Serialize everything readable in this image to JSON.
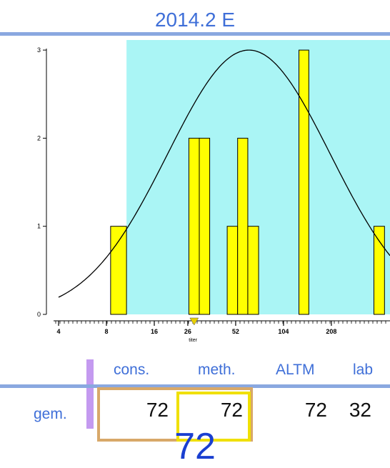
{
  "chart_data": {
    "type": "bar",
    "title": "2014.2 E",
    "xlabel": "titer",
    "ylabel": "",
    "x_scale": "log2",
    "tick_labels": [
      "4",
      "8",
      "16",
      "26",
      "52",
      "104",
      "208"
    ],
    "ylim": [
      0,
      3
    ],
    "yticks": [
      "0",
      "1",
      "2",
      "3"
    ],
    "bars": [
      {
        "x_from": 8.5,
        "x_to": 10.7,
        "count": 1
      },
      {
        "x_from": 26.4,
        "x_to": 30.7,
        "count": 2
      },
      {
        "x_from": 30.7,
        "x_to": 35.7,
        "count": 2
      },
      {
        "x_from": 46,
        "x_to": 53.5,
        "count": 1
      },
      {
        "x_from": 53.5,
        "x_to": 62,
        "count": 2
      },
      {
        "x_from": 62,
        "x_to": 72.5,
        "count": 1
      },
      {
        "x_from": 130,
        "x_to": 150,
        "count": 3
      },
      {
        "x_from": 385,
        "x_to": 449,
        "count": 1
      }
    ],
    "shaded_range": [
      10.7,
      449
    ],
    "normal_curve": {
      "mean_titer": 63,
      "sd_log2": 1.7,
      "peak": 3.0
    },
    "marker_titer": 28.5,
    "colors": {
      "bar": "#ffff00",
      "band": "#aaf5f5",
      "curve": "#000000",
      "marker": "#e8d000"
    }
  },
  "table": {
    "headers": {
      "cons": "cons.",
      "meth": "meth.",
      "altm": "ALTM",
      "lab": "lab"
    },
    "row_label": "gem.",
    "values": {
      "cons": "72",
      "meth": "72",
      "altm": "72",
      "lab": "32"
    },
    "big_number": "72"
  },
  "colors": {
    "title": "#3f6fd8",
    "rule": "#8aa8e0",
    "box_cons": "#d8a869",
    "box_meth": "#f0e000",
    "vbar": "#c49af0",
    "big": "#1a3fd0"
  }
}
